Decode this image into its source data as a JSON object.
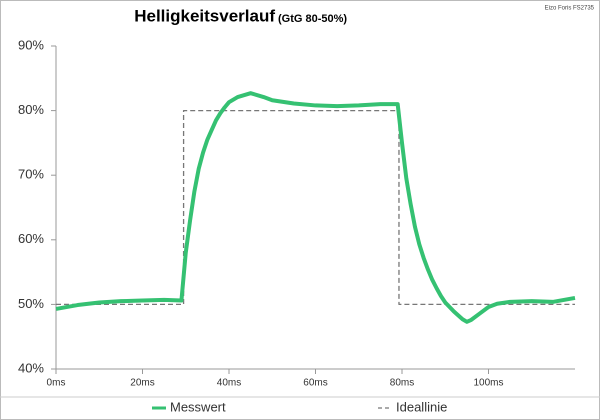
{
  "chart_data": {
    "type": "line",
    "title": "Helligkeitsverlauf",
    "subtitle": "(GtG 80-50%)",
    "source": "Eizo Foris FS2735",
    "xlim": [
      0,
      120
    ],
    "xticks": [
      {
        "value": 0,
        "label": "0ms"
      },
      {
        "value": 20,
        "label": "20ms"
      },
      {
        "value": 40,
        "label": "40ms"
      },
      {
        "value": 60,
        "label": "60ms"
      },
      {
        "value": 80,
        "label": "80ms"
      },
      {
        "value": 100,
        "label": "100ms"
      }
    ],
    "ylim": [
      40,
      90
    ],
    "yticks": [
      {
        "value": 40,
        "label": "40%"
      },
      {
        "value": 50,
        "label": "50%"
      },
      {
        "value": 60,
        "label": "60%"
      },
      {
        "value": 70,
        "label": "70%"
      },
      {
        "value": 80,
        "label": "80%"
      },
      {
        "value": 90,
        "label": "90%"
      }
    ],
    "series": [
      {
        "name": "Messwert",
        "color": "#35c172",
        "dash": false,
        "x": [
          0,
          5,
          10,
          15,
          20,
          25,
          29,
          30,
          31,
          32,
          33,
          34,
          35,
          36,
          37,
          38,
          39,
          40,
          42,
          45,
          48,
          50,
          55,
          60,
          65,
          70,
          75,
          79,
          80,
          81,
          82,
          83,
          84,
          85,
          86,
          87,
          88,
          89,
          90,
          92,
          94,
          95,
          96,
          98,
          100,
          102,
          105,
          110,
          115,
          120
        ],
        "values": [
          49.3,
          49.9,
          50.3,
          50.5,
          50.6,
          50.7,
          50.6,
          58,
          63,
          67.5,
          71,
          73.5,
          75.5,
          77,
          78.5,
          79.6,
          80.5,
          81.3,
          82.1,
          82.7,
          82.1,
          81.6,
          81.1,
          80.8,
          80.7,
          80.8,
          81,
          81,
          75,
          69.5,
          65.5,
          62,
          59.3,
          57.2,
          55.4,
          53.8,
          52.5,
          51.3,
          50.3,
          48.9,
          47.7,
          47.3,
          47.6,
          48.6,
          49.6,
          50.1,
          50.4,
          50.5,
          50.4,
          51
        ]
      },
      {
        "name": "Ideallinie",
        "color": "#777777",
        "dash": true,
        "x": [
          0,
          29.5,
          29.5,
          79.3,
          79.3,
          120
        ],
        "values": [
          50,
          50,
          80,
          80,
          50,
          50
        ]
      }
    ]
  }
}
